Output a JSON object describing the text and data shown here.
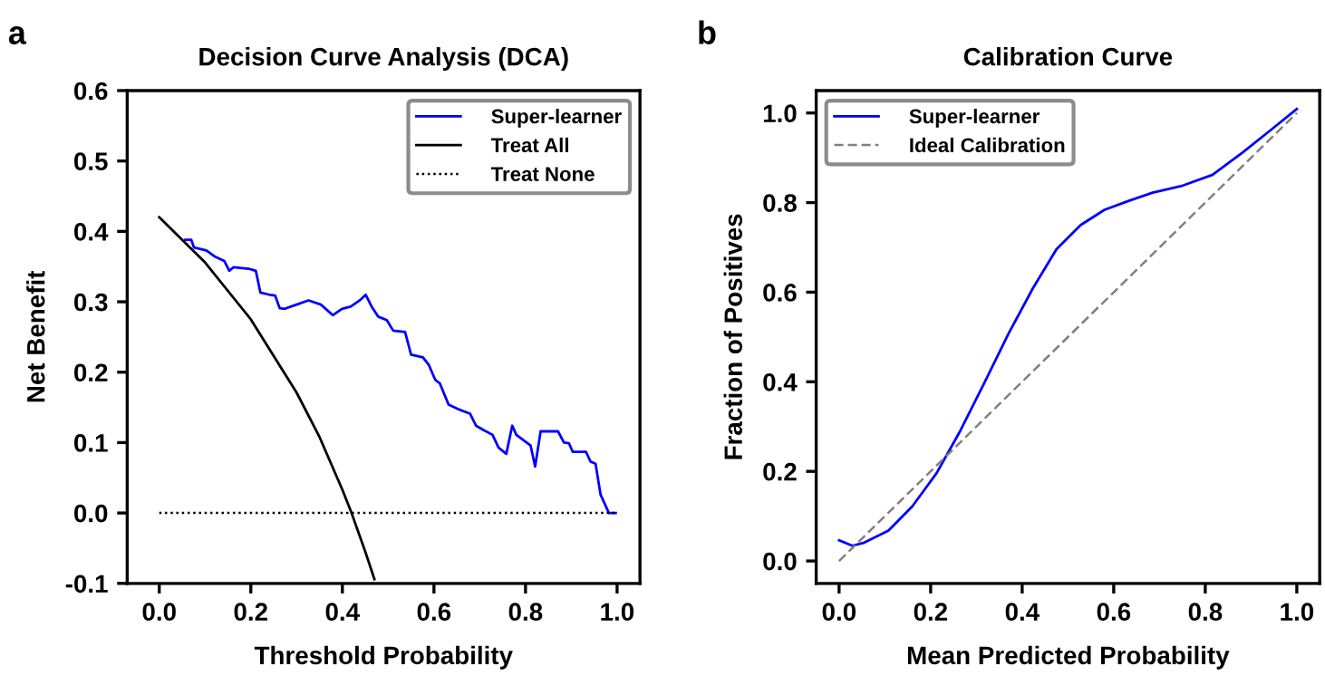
{
  "chart_data": [
    {
      "type": "line",
      "title": "Decision Curve Analysis (DCA)",
      "xlabel": "Threshold Probability",
      "ylabel": "Net Benefit",
      "annotations": [
        "a"
      ],
      "xlim": [
        -0.07,
        1.05
      ],
      "ylim": [
        -0.1,
        0.6
      ],
      "xticks": [
        {
          "value": 0,
          "label": "0.0"
        },
        {
          "value": 0.2,
          "label": "0.2"
        },
        {
          "value": 0.4,
          "label": "0.4"
        },
        {
          "value": 0.6,
          "label": "0.6"
        },
        {
          "value": 0.8,
          "label": "0.8"
        },
        {
          "value": 1,
          "label": "1.0"
        }
      ],
      "yticks": [
        {
          "value": -0.1,
          "label": "-0.1"
        },
        {
          "value": 0,
          "label": "0.0"
        },
        {
          "value": 0.1,
          "label": "0.1"
        },
        {
          "value": 0.2,
          "label": "0.2"
        },
        {
          "value": 0.3,
          "label": "0.3"
        },
        {
          "value": 0.4,
          "label": "0.4"
        },
        {
          "value": 0.5,
          "label": "0.5"
        },
        {
          "value": 0.6,
          "label": "0.6"
        }
      ],
      "grid": false,
      "legend": "top right",
      "series": [
        {
          "name": "Super-learner",
          "color": "#0000ff",
          "line_style": "solid",
          "x": [
            0.057,
            0.07,
            0.076,
            0.103,
            0.122,
            0.142,
            0.153,
            0.162,
            0.195,
            0.211,
            0.221,
            0.241,
            0.253,
            0.263,
            0.274,
            0.3,
            0.326,
            0.353,
            0.379,
            0.399,
            0.418,
            0.438,
            0.451,
            0.464,
            0.478,
            0.497,
            0.511,
            0.537,
            0.55,
            0.576,
            0.589,
            0.603,
            0.613,
            0.632,
            0.655,
            0.679,
            0.692,
            0.708,
            0.728,
            0.741,
            0.758,
            0.771,
            0.78,
            0.811,
            0.821,
            0.833,
            0.871,
            0.884,
            0.895,
            0.903,
            0.932,
            0.942,
            0.953,
            0.964,
            0.982,
            0.997
          ],
          "values": [
            0.388,
            0.388,
            0.377,
            0.373,
            0.364,
            0.358,
            0.344,
            0.349,
            0.347,
            0.344,
            0.313,
            0.31,
            0.309,
            0.291,
            0.29,
            0.296,
            0.302,
            0.296,
            0.281,
            0.29,
            0.293,
            0.302,
            0.31,
            0.293,
            0.279,
            0.274,
            0.259,
            0.257,
            0.225,
            0.221,
            0.21,
            0.189,
            0.184,
            0.154,
            0.147,
            0.141,
            0.124,
            0.118,
            0.111,
            0.093,
            0.084,
            0.124,
            0.111,
            0.096,
            0.066,
            0.116,
            0.116,
            0.1,
            0.099,
            0.087,
            0.087,
            0.073,
            0.07,
            0.026,
            0.0,
            0.0
          ]
        },
        {
          "name": "Treat All",
          "color": "#000000",
          "line_style": "solid",
          "x": [
            0,
            0.1,
            0.2,
            0.3,
            0.35,
            0.4,
            0.42,
            0.45,
            0.47
          ],
          "values": [
            0.42,
            0.356,
            0.275,
            0.171,
            0.108,
            0.033,
            0.0,
            -0.055,
            -0.094
          ]
        },
        {
          "name": "Treat None",
          "color": "#000000",
          "line_style": "dotted",
          "x": [
            0,
            1
          ],
          "values": [
            0,
            0
          ]
        }
      ]
    },
    {
      "type": "line",
      "title": "Calibration Curve",
      "xlabel": "Mean Predicted Probability",
      "ylabel": "Fraction of Positives",
      "annotations": [
        "b"
      ],
      "xlim": [
        -0.05,
        1.05
      ],
      "ylim": [
        -0.05,
        1.05
      ],
      "xticks": [
        {
          "value": 0,
          "label": "0.0"
        },
        {
          "value": 0.2,
          "label": "0.2"
        },
        {
          "value": 0.4,
          "label": "0.4"
        },
        {
          "value": 0.6,
          "label": "0.6"
        },
        {
          "value": 0.8,
          "label": "0.8"
        },
        {
          "value": 1,
          "label": "1.0"
        }
      ],
      "yticks": [
        {
          "value": 0,
          "label": "0.0"
        },
        {
          "value": 0.2,
          "label": "0.2"
        },
        {
          "value": 0.4,
          "label": "0.4"
        },
        {
          "value": 0.6,
          "label": "0.6"
        },
        {
          "value": 0.8,
          "label": "0.8"
        },
        {
          "value": 1,
          "label": "1.0"
        }
      ],
      "grid": false,
      "legend": "top left",
      "series": [
        {
          "name": "Super-learner",
          "color": "#0000ff",
          "line_style": "solid",
          "x": [
            0,
            0.029,
            0.055,
            0.108,
            0.16,
            0.213,
            0.265,
            0.318,
            0.37,
            0.423,
            0.475,
            0.528,
            0.58,
            0.633,
            0.685,
            0.751,
            0.816,
            0.882,
            0.948,
            1.0
          ],
          "values": [
            0.046,
            0.034,
            0.041,
            0.068,
            0.122,
            0.196,
            0.291,
            0.399,
            0.507,
            0.608,
            0.696,
            0.75,
            0.784,
            0.804,
            0.822,
            0.838,
            0.862,
            0.912,
            0.966,
            1.009
          ]
        },
        {
          "name": "Ideal Calibration",
          "color": "#808080",
          "line_style": "dashed",
          "x": [
            0,
            1
          ],
          "values": [
            0,
            1
          ]
        }
      ]
    }
  ]
}
